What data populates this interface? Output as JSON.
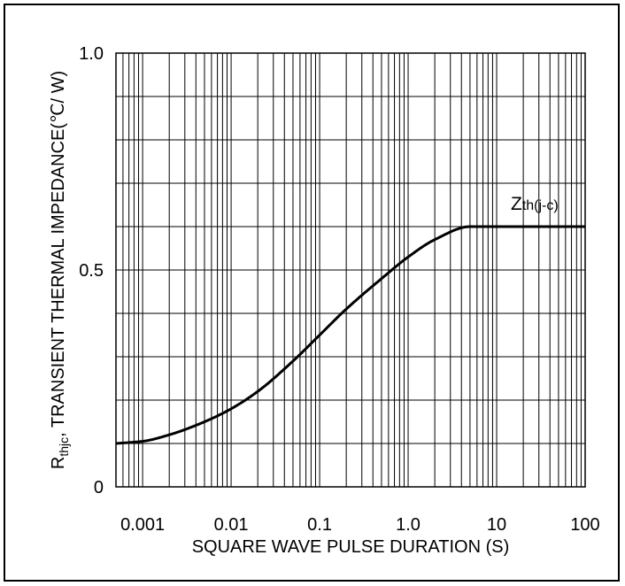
{
  "chart_data": {
    "type": "line",
    "x_scale": "log",
    "xlim": [
      0.0005,
      100
    ],
    "ylim": [
      0,
      1.0
    ],
    "x_tick_labels": [
      {
        "value": 0.001,
        "label": "0.001"
      },
      {
        "value": 0.01,
        "label": "0.01"
      },
      {
        "value": 0.1,
        "label": "0.1"
      },
      {
        "value": 1,
        "label": "1.0"
      },
      {
        "value": 10,
        "label": "10"
      },
      {
        "value": 100,
        "label": "100"
      }
    ],
    "y_tick_labels": [
      {
        "value": 0,
        "label": "0"
      },
      {
        "value": 0.5,
        "label": "0.5"
      },
      {
        "value": 1.0,
        "label": "1.0"
      }
    ],
    "y_grid_step": 0.1,
    "grid": true,
    "xlabel": "SQUARE WAVE PULSE DURATION (S)",
    "ylabel": {
      "symbol": "R",
      "subscript": "thjc",
      "text": ",  TRANSIENT THERMAL IMPEDANCE(℃/ W)"
    },
    "series": [
      {
        "label_main": "Z",
        "label_sub": "th(j-c)",
        "color": "#000000",
        "x": [
          0.0005,
          0.001,
          0.002,
          0.005,
          0.01,
          0.02,
          0.05,
          0.1,
          0.2,
          0.5,
          1,
          2,
          5,
          10,
          20,
          50,
          100
        ],
        "y": [
          0.1,
          0.105,
          0.12,
          0.15,
          0.18,
          0.22,
          0.29,
          0.35,
          0.41,
          0.48,
          0.53,
          0.57,
          0.6,
          0.6,
          0.6,
          0.6,
          0.6
        ]
      }
    ]
  }
}
